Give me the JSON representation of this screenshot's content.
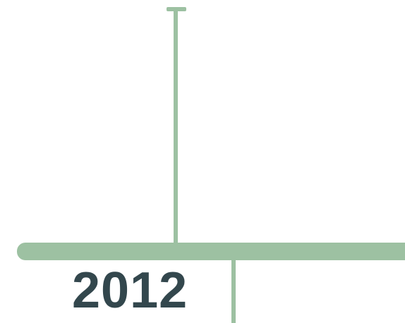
{
  "timeline": {
    "year": "2012"
  },
  "colors": {
    "accent": "#9dc1a2",
    "year_text": "#33474d",
    "background": "#ffffff"
  }
}
